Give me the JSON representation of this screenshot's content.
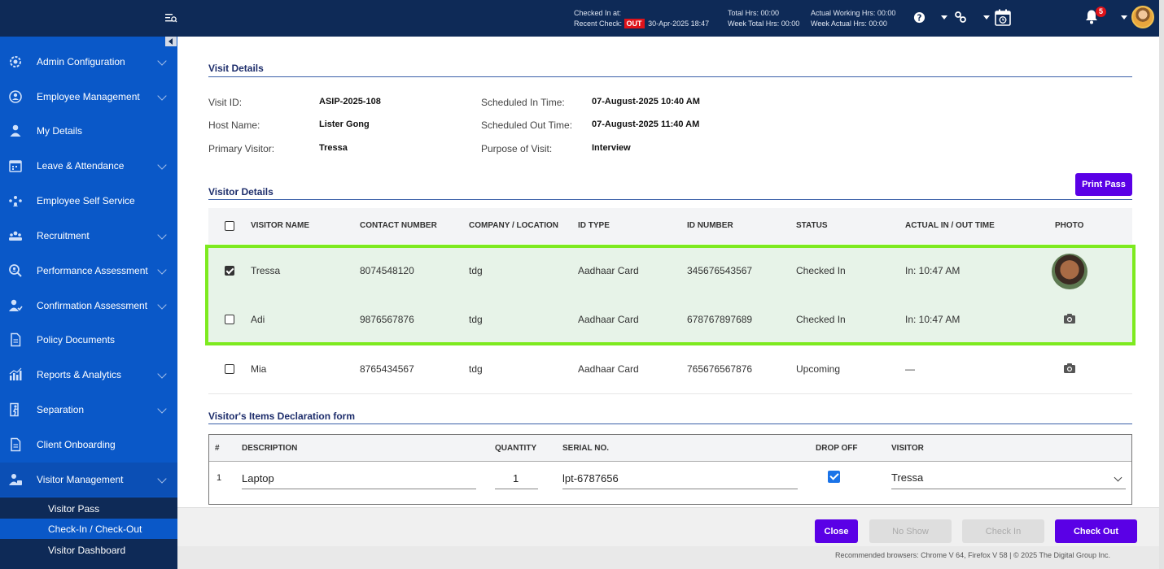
{
  "header": {
    "checked_in_label": "Checked In at:",
    "recent_check_label": "Recent Check:",
    "out_badge": "OUT",
    "recent_check_time": "30-Apr-2025 18:47",
    "total_hrs_label": "Total Hrs:",
    "total_hrs_value": "00:00",
    "week_total_hrs_label": "Week Total Hrs:",
    "week_total_hrs_value": "00:00",
    "actual_working_hrs_label": "Actual Working Hrs:",
    "actual_working_hrs_value": "00:00",
    "week_actual_hrs_label": "Week Actual Hrs:",
    "week_actual_hrs_value": "00:00",
    "notification_count": "5"
  },
  "sidebar": {
    "items": [
      {
        "label": "Admin Configuration",
        "icon": "gear-icon"
      },
      {
        "label": "Employee Management",
        "icon": "employee-icon"
      },
      {
        "label": "My Details",
        "icon": "user-icon"
      },
      {
        "label": "Leave & Attendance",
        "icon": "calendar-icon"
      },
      {
        "label": "Employee Self Service",
        "icon": "people-network-icon"
      },
      {
        "label": "Recruitment",
        "icon": "team-icon"
      },
      {
        "label": "Performance Assessment",
        "icon": "magnifier-user-icon"
      },
      {
        "label": "Confirmation Assessment",
        "icon": "user-check-icon"
      },
      {
        "label": "Policy Documents",
        "icon": "document-icon"
      },
      {
        "label": "Reports & Analytics",
        "icon": "chart-icon"
      },
      {
        "label": "Separation",
        "icon": "exit-icon"
      },
      {
        "label": "Client Onboarding",
        "icon": "document-icon"
      },
      {
        "label": "Visitor Management",
        "icon": "visitor-icon"
      }
    ],
    "sub_items": [
      {
        "label": "Visitor Pass"
      },
      {
        "label": "Check-In / Check-Out"
      },
      {
        "label": "Visitor Dashboard"
      }
    ]
  },
  "visit_details": {
    "title": "Visit Details",
    "visit_id_label": "Visit ID:",
    "visit_id": "ASIP-2025-108",
    "host_name_label": "Host Name:",
    "host_name": "Lister Gong",
    "primary_visitor_label": "Primary Visitor:",
    "primary_visitor": "Tressa",
    "scheduled_in_label": "Scheduled In Time:",
    "scheduled_in": "07-August-2025 10:40 AM",
    "scheduled_out_label": "Scheduled Out Time:",
    "scheduled_out": "07-August-2025 11:40 AM",
    "purpose_label": "Purpose of Visit:",
    "purpose": "Interview"
  },
  "visitor_details": {
    "title": "Visitor Details",
    "print_pass_label": "Print Pass",
    "columns": [
      "VISITOR NAME",
      "CONTACT NUMBER",
      "COMPANY / LOCATION",
      "ID TYPE",
      "ID NUMBER",
      "STATUS",
      "ACTUAL IN / OUT TIME",
      "PHOTO"
    ],
    "rows": [
      {
        "checked": true,
        "name": "Tressa",
        "contact": "8074548120",
        "company": "tdg",
        "id_type": "Aadhaar Card",
        "id_number": "345676543567",
        "status": "Checked In",
        "time": "In: 10:47 AM",
        "photo": "avatar"
      },
      {
        "checked": false,
        "name": "Adi",
        "contact": "9876567876",
        "company": "tdg",
        "id_type": "Aadhaar Card",
        "id_number": "678767897689",
        "status": "Checked In",
        "time": "In: 10:47 AM",
        "photo": "camera-icon"
      },
      {
        "checked": false,
        "name": "Mia",
        "contact": "8765434567",
        "company": "tdg",
        "id_type": "Aadhaar Card",
        "id_number": "765676567876",
        "status": "Upcoming",
        "time": "—",
        "photo": "camera-icon"
      }
    ]
  },
  "items_declaration": {
    "title": "Visitor's Items Declaration form",
    "columns": [
      "#",
      "DESCRIPTION",
      "QUANTITY",
      "SERIAL NO.",
      "DROP OFF",
      "VISITOR"
    ],
    "rows": [
      {
        "index": "1",
        "description": "Laptop",
        "quantity": "1",
        "serial": "lpt-6787656",
        "drop_off": true,
        "visitor": "Tressa"
      }
    ]
  },
  "footer": {
    "close_label": "Close",
    "no_show_label": "No Show",
    "check_in_label": "Check In",
    "check_out_label": "Check Out",
    "copyright": "Recommended browsers: Chrome V 64, Firefox V 58  |  © 2025 The Digital Group Inc."
  },
  "colors": {
    "header_bg": "#0e2a57",
    "sidebar_bg": "#0a58c8",
    "primary_button": "#5a00e6",
    "highlight_border": "#7dea1f",
    "highlight_row": "#e7f3e8"
  }
}
